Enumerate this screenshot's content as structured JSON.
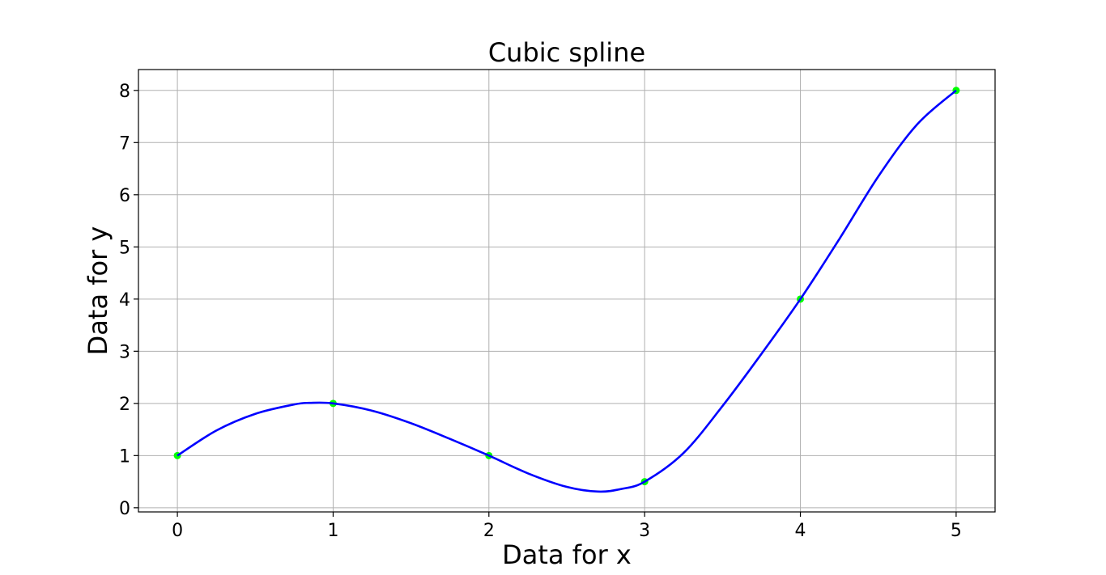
{
  "chart_data": {
    "type": "line",
    "title": "Cubic spline",
    "xlabel": "Data for x",
    "ylabel": "Data for y",
    "xlim": [
      -0.25,
      5.25
    ],
    "ylim": [
      -0.08,
      8.4
    ],
    "x_ticks": [
      "0",
      "1",
      "2",
      "3",
      "4",
      "5"
    ],
    "y_ticks": [
      "0",
      "1",
      "2",
      "3",
      "4",
      "5",
      "6",
      "7",
      "8"
    ],
    "grid": true,
    "series": [
      {
        "kind": "points",
        "color": "#00ff00",
        "x": [
          0,
          1,
          2,
          3,
          4,
          5
        ],
        "y": [
          1,
          2,
          1,
          0.5,
          4,
          8
        ]
      },
      {
        "kind": "spline",
        "color": "#0000ff",
        "x": [
          0,
          0.25,
          0.5,
          0.75,
          0.85,
          1,
          1.25,
          1.5,
          1.75,
          2,
          2.25,
          2.5,
          2.7,
          2.85,
          3,
          3.25,
          3.5,
          3.75,
          4,
          4.25,
          4.5,
          4.75,
          5
        ],
        "y": [
          1,
          1.48,
          1.8,
          1.98,
          2.01,
          2.0,
          1.86,
          1.62,
          1.32,
          1.0,
          0.66,
          0.4,
          0.31,
          0.36,
          0.5,
          1.05,
          1.95,
          2.95,
          4.0,
          5.15,
          6.35,
          7.35,
          8.0
        ]
      }
    ]
  }
}
